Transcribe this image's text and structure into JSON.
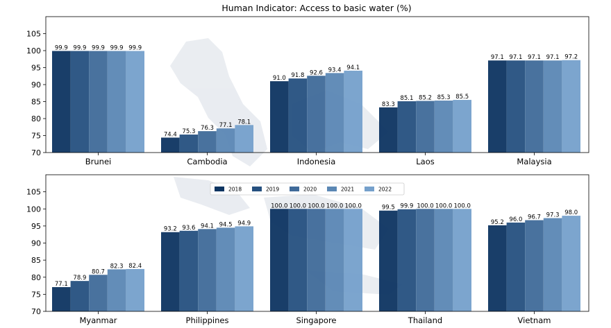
{
  "chart_data": {
    "type": "bar",
    "title": "Human Indicator: Access to basic water (%)",
    "xlabel": "",
    "ylabel": "",
    "ylim": [
      70,
      110
    ],
    "yticks": [
      70,
      75,
      80,
      85,
      90,
      95,
      100,
      105
    ],
    "grid": false,
    "legend_position": "upper-center of bottom panel",
    "series_names": [
      "2018",
      "2019",
      "2020",
      "2021",
      "2022"
    ],
    "colors": [
      "#0d3461",
      "#25507f",
      "#3f6a99",
      "#5b87b4",
      "#75a0cb"
    ],
    "panels": [
      {
        "categories": [
          "Brunei",
          "Cambodia",
          "Indonesia",
          "Laos",
          "Malaysia"
        ],
        "values": [
          [
            99.9,
            99.9,
            99.9,
            99.9,
            99.9
          ],
          [
            74.4,
            75.3,
            76.3,
            77.1,
            78.1
          ],
          [
            91.0,
            91.8,
            92.6,
            93.4,
            94.1
          ],
          [
            83.3,
            85.1,
            85.2,
            85.3,
            85.5
          ],
          [
            97.1,
            97.1,
            97.1,
            97.1,
            97.2
          ]
        ]
      },
      {
        "categories": [
          "Myanmar",
          "Philippines",
          "Singapore",
          "Thailand",
          "Vietnam"
        ],
        "values": [
          [
            77.1,
            78.9,
            80.7,
            82.3,
            82.4
          ],
          [
            93.2,
            93.6,
            94.1,
            94.5,
            94.9
          ],
          [
            100.0,
            100.0,
            100.0,
            100.0,
            100.0
          ],
          [
            99.5,
            99.9,
            100.0,
            100.0,
            100.0
          ],
          [
            95.2,
            96.0,
            96.7,
            97.3,
            98.0
          ]
        ]
      }
    ]
  }
}
